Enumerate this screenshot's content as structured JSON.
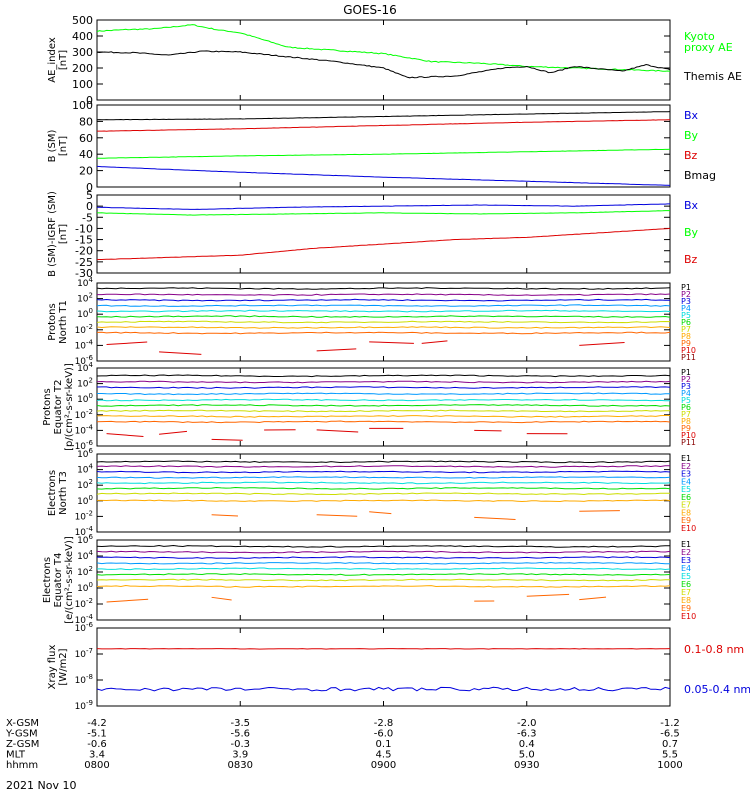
{
  "title": "GOES-16",
  "date_label": "2021 Nov 10",
  "colors": {
    "black": "#000000",
    "green": "#00ff00",
    "red": "#dd0000",
    "blue": "#0000dd",
    "ch": [
      "#000000",
      "#880088",
      "#0000dd",
      "#0099ff",
      "#00dddd",
      "#00dd00",
      "#ccdd00",
      "#ffaa00",
      "#ff6600",
      "#dd0000",
      "#880000"
    ]
  },
  "time_axis": {
    "range_hhmm": [
      "0800",
      "1000"
    ],
    "rows": [
      {
        "label": "X-GSM",
        "values": [
          "-4.2",
          "-3.5",
          "-2.8",
          "-2.0",
          "-1.2"
        ]
      },
      {
        "label": "Y-GSM",
        "values": [
          "-5.1",
          "-5.6",
          "-6.0",
          "-6.3",
          "-6.5"
        ]
      },
      {
        "label": "Z-GSM",
        "values": [
          "-0.6",
          "-0.3",
          "0.1",
          "0.4",
          "0.7"
        ]
      },
      {
        "label": "MLT",
        "values": [
          "3.4",
          "3.9",
          "4.5",
          "5.0",
          "5.5"
        ]
      },
      {
        "label": "hhmm",
        "values": [
          "0800",
          "0830",
          "0900",
          "0930",
          "1000"
        ]
      }
    ]
  },
  "chart_data": [
    {
      "type": "line",
      "ylabel": [
        "AE_index",
        "[nT]"
      ],
      "ylim": [
        0,
        500
      ],
      "yticks": [
        "0",
        "100",
        "200",
        "300",
        "400",
        "500"
      ],
      "series": [
        {
          "name": "Kyoto\nproxy AE",
          "color": "green",
          "points": [
            [
              0,
              430
            ],
            [
              6,
              440
            ],
            [
              12,
              445
            ],
            [
              20,
              470
            ],
            [
              25,
              440
            ],
            [
              30,
              420
            ],
            [
              40,
              330
            ],
            [
              50,
              310
            ],
            [
              60,
              290
            ],
            [
              70,
              240
            ],
            [
              80,
              230
            ],
            [
              90,
              210
            ],
            [
              100,
              200
            ],
            [
              110,
              190
            ],
            [
              120,
              180
            ]
          ]
        },
        {
          "name": "Themis AE",
          "color": "black",
          "points": [
            [
              0,
              300
            ],
            [
              8,
              295
            ],
            [
              15,
              280
            ],
            [
              22,
              305
            ],
            [
              30,
              300
            ],
            [
              40,
              270
            ],
            [
              50,
              240
            ],
            [
              60,
              200
            ],
            [
              65,
              140
            ],
            [
              75,
              150
            ],
            [
              85,
              200
            ],
            [
              90,
              210
            ],
            [
              95,
              170
            ],
            [
              100,
              210
            ],
            [
              110,
              180
            ],
            [
              115,
              220
            ],
            [
              120,
              190
            ]
          ]
        }
      ]
    },
    {
      "type": "line",
      "ylabel": [
        "B (SM)",
        "[nT]"
      ],
      "ylim": [
        0,
        100
      ],
      "yticks": [
        "0",
        "20",
        "40",
        "60",
        "80",
        "100"
      ],
      "series": [
        {
          "name": "Bx",
          "color": "blue",
          "points": [
            [
              0,
              25
            ],
            [
              30,
              18
            ],
            [
              60,
              12
            ],
            [
              90,
              7
            ],
            [
              120,
              2
            ]
          ]
        },
        {
          "name": "By",
          "color": "green",
          "points": [
            [
              0,
              35
            ],
            [
              30,
              38
            ],
            [
              60,
              40
            ],
            [
              90,
              43
            ],
            [
              120,
              46
            ]
          ]
        },
        {
          "name": "Bz",
          "color": "red",
          "points": [
            [
              0,
              68
            ],
            [
              30,
              71
            ],
            [
              60,
              75
            ],
            [
              90,
              79
            ],
            [
              120,
              82
            ]
          ]
        },
        {
          "name": "Bmag",
          "color": "black",
          "points": [
            [
              0,
              82
            ],
            [
              30,
              83
            ],
            [
              60,
              86
            ],
            [
              90,
              89
            ],
            [
              120,
              92
            ]
          ]
        }
      ]
    },
    {
      "type": "line",
      "ylabel": [
        "B (SM)-IGRF (SM)",
        "[nT]"
      ],
      "ylim": [
        -30,
        5
      ],
      "yticks": [
        "-30",
        "-25",
        "-20",
        "-15",
        "-10",
        "-5",
        "0",
        "5"
      ],
      "series": [
        {
          "name": "Bx",
          "color": "blue",
          "points": [
            [
              0,
              -0.5
            ],
            [
              20,
              -1.5
            ],
            [
              40,
              -0.5
            ],
            [
              60,
              0
            ],
            [
              80,
              0.5
            ],
            [
              100,
              0
            ],
            [
              120,
              1
            ]
          ]
        },
        {
          "name": "By",
          "color": "green",
          "points": [
            [
              0,
              -3
            ],
            [
              20,
              -4
            ],
            [
              40,
              -3.5
            ],
            [
              60,
              -3
            ],
            [
              80,
              -3.5
            ],
            [
              100,
              -3
            ],
            [
              120,
              -2
            ]
          ]
        },
        {
          "name": "Bz",
          "color": "red",
          "points": [
            [
              0,
              -24
            ],
            [
              15,
              -23
            ],
            [
              30,
              -22
            ],
            [
              45,
              -19
            ],
            [
              60,
              -17
            ],
            [
              75,
              -15
            ],
            [
              90,
              -14
            ],
            [
              105,
              -12
            ],
            [
              120,
              -10
            ]
          ]
        }
      ]
    },
    {
      "type": "line",
      "log": true,
      "ylabel": [
        "Protons",
        "North T1"
      ],
      "ylim_exp": [
        -6,
        4
      ],
      "yticks": [
        -6,
        -4,
        -2,
        0,
        2,
        4
      ],
      "legend": [
        "P1",
        "P2",
        "P3",
        "P4",
        "P5",
        "P6",
        "P7",
        "P8",
        "P9",
        "P10",
        "P11"
      ],
      "levels": [
        3.3,
        2.5,
        1.8,
        1.1,
        0.4,
        -0.3,
        -1.0,
        -1.7,
        -2.4,
        -4.2,
        -6
      ],
      "sparse_from": 9
    },
    {
      "type": "line",
      "log": true,
      "ylabel": [
        "Protons",
        "Equator T2",
        "[p/(cm²-s-sr-keV)]"
      ],
      "ylim_exp": [
        -6,
        4
      ],
      "yticks": [
        -6,
        -4,
        -2,
        0,
        2,
        4
      ],
      "legend": [
        "P1",
        "P2",
        "P3",
        "P4",
        "P5",
        "P6",
        "P7",
        "P8",
        "P9",
        "P10",
        "P11"
      ],
      "levels": [
        3.0,
        2.2,
        1.5,
        0.7,
        -0.1,
        -0.8,
        -1.5,
        -2.2,
        -2.9,
        -4.5,
        -6
      ],
      "sparse_from": 9
    },
    {
      "type": "line",
      "log": true,
      "ylabel": [
        "Electrons",
        "North T3"
      ],
      "ylim_exp": [
        -4,
        6
      ],
      "yticks": [
        -4,
        -2,
        0,
        2,
        4,
        6
      ],
      "legend": [
        "E1",
        "E2",
        "E3",
        "E4",
        "E5",
        "E6",
        "E7",
        "E8",
        "E9",
        "E10"
      ],
      "levels": [
        5.0,
        4.4,
        3.7,
        3.0,
        2.3,
        1.6,
        0.9,
        0.0,
        -1.6,
        -4
      ],
      "sparse_from": 8
    },
    {
      "type": "line",
      "log": true,
      "ylabel": [
        "Electrons",
        "Equator T4",
        "[e/(cm²-s-sr-keV)]"
      ],
      "ylim_exp": [
        -4,
        6
      ],
      "yticks": [
        -4,
        -2,
        0,
        2,
        4,
        6
      ],
      "legend": [
        "E1",
        "E2",
        "E3",
        "E4",
        "E5",
        "E6",
        "E7",
        "E8",
        "E9",
        "E10"
      ],
      "levels": [
        5.2,
        4.5,
        3.8,
        3.1,
        2.4,
        1.7,
        1.0,
        0.2,
        -1.4,
        -4
      ],
      "sparse_from": 8
    },
    {
      "type": "line",
      "log": true,
      "ylabel": [
        "Xray flux",
        "[W/m2]"
      ],
      "ylim_exp": [
        -9,
        -6
      ],
      "yticks": [
        -9,
        -8,
        -7,
        -6
      ],
      "series": [
        {
          "name": "0.1-0.8 nm",
          "color": "red",
          "level": -6.8
        },
        {
          "name": "0.05-0.4 nm",
          "color": "blue",
          "level": -8.35
        }
      ]
    }
  ]
}
